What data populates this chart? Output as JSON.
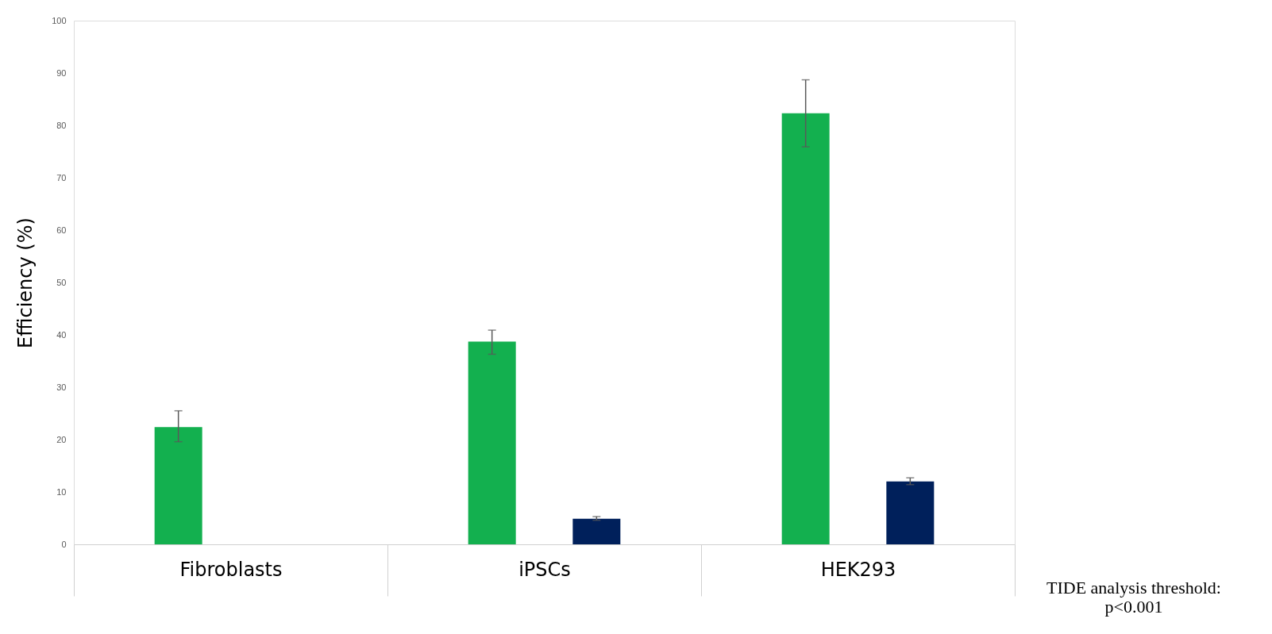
{
  "chart_data": {
    "type": "bar",
    "ylabel": "Efficiency (%)",
    "categories": [
      "Fibroblasts",
      "iPSCs",
      "HEK293"
    ],
    "series": [
      {
        "color": "#13b04f",
        "values": [
          22.4,
          38.7,
          82.3
        ],
        "errors": [
          [
            19.6,
            25.5
          ],
          [
            36.3,
            40.9
          ],
          [
            75.9,
            88.7
          ]
        ]
      },
      {
        "color": "#00205b",
        "values": [
          null,
          4.9,
          12.0
        ],
        "errors": [
          null,
          [
            4.6,
            5.3
          ],
          [
            11.4,
            12.7
          ]
        ]
      }
    ],
    "ylim": [
      0,
      100
    ],
    "yticks": [
      0,
      10,
      20,
      30,
      40,
      50,
      60,
      70,
      80,
      90,
      100
    ],
    "grid": false,
    "legend": false,
    "annotations": [
      "TIDE analysis threshold:\np<0.001"
    ]
  }
}
